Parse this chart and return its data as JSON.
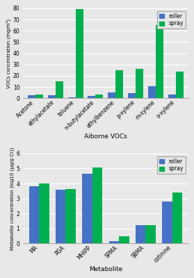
{
  "top": {
    "categories": [
      "Acetone",
      "ethylacetate",
      "toluene",
      "n-butylacetate",
      "ethylbenzene",
      "p-xylene",
      "m-xylene",
      "o-xylene"
    ],
    "roller": [
      2.5,
      2.5,
      1.0,
      2.0,
      5.0,
      4.5,
      10.5,
      3.5
    ],
    "spray": [
      3.0,
      15.0,
      79.0,
      3.0,
      25.0,
      26.0,
      65.0,
      23.5
    ],
    "ylabel": "VOCs concentration (mg/m³)",
    "xlabel": "Aiborne VOCs",
    "ylim": [
      0,
      80
    ],
    "yticks": [
      0,
      10,
      20,
      30,
      40,
      50,
      60,
      70,
      80
    ],
    "roller_color": "#4472C4",
    "spray_color": "#00B050"
  },
  "bottom": {
    "categories": [
      "MA",
      "PGA",
      "MHIPP",
      "SPMA",
      "SBMA",
      "cotinine"
    ],
    "roller": [
      3.8,
      3.6,
      4.65,
      0.15,
      1.2,
      2.8
    ],
    "spray": [
      4.0,
      3.65,
      5.05,
      0.5,
      1.2,
      3.4
    ],
    "ylabel": "Metabolite concentration (log10 (μg/g Cr))",
    "xlabel": "Metabolite",
    "ylim": [
      0,
      6
    ],
    "yticks": [
      0,
      1,
      2,
      3,
      4,
      5,
      6
    ],
    "roller_color": "#4472C4",
    "spray_color": "#00B050"
  },
  "legend_roller": "roller",
  "legend_spray": "spray",
  "bg_color": "#E8E8E8",
  "plot_bg": "#E8E8E8",
  "bar_width": 0.38,
  "grid_color": "#FFFFFF"
}
